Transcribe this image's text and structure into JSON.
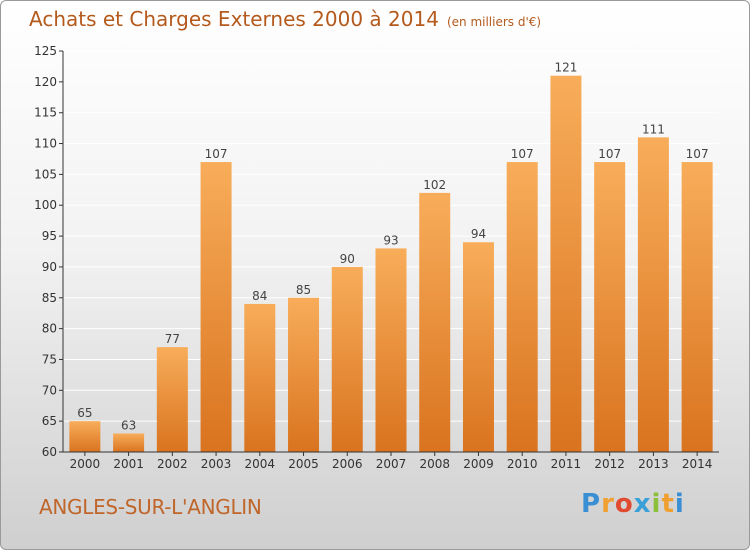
{
  "title": "Achats et Charges Externes 2000 à 2014",
  "unit": "(en milliers d'€)",
  "commune": "ANGLES-SUR-L'ANGLIN",
  "logo": {
    "letters": [
      "P",
      "r",
      "o",
      "x",
      "i",
      "t",
      "i"
    ],
    "colors": [
      "#3a8fd4",
      "#f0a030",
      "#e04a2f",
      "#3aa0d8",
      "#8cbf3a",
      "#f0a030",
      "#3a8fd4"
    ]
  },
  "colors": {
    "bar_top": "#f8ad5a",
    "bar_bottom": "#d9731f",
    "axis": "#333333",
    "grid": "#ffffff",
    "title": "#b55a1d"
  },
  "chart_data": {
    "type": "bar",
    "categories": [
      "2000",
      "2001",
      "2002",
      "2003",
      "2004",
      "2005",
      "2006",
      "2007",
      "2008",
      "2009",
      "2010",
      "2011",
      "2012",
      "2013",
      "2014"
    ],
    "values": [
      65,
      63,
      77,
      107,
      84,
      85,
      90,
      93,
      102,
      94,
      107,
      121,
      107,
      111,
      107
    ],
    "ylim": [
      60,
      125
    ],
    "yticks": [
      60,
      65,
      70,
      75,
      80,
      85,
      90,
      95,
      100,
      105,
      110,
      115,
      120,
      125
    ],
    "grid": true,
    "data_labels": true
  }
}
